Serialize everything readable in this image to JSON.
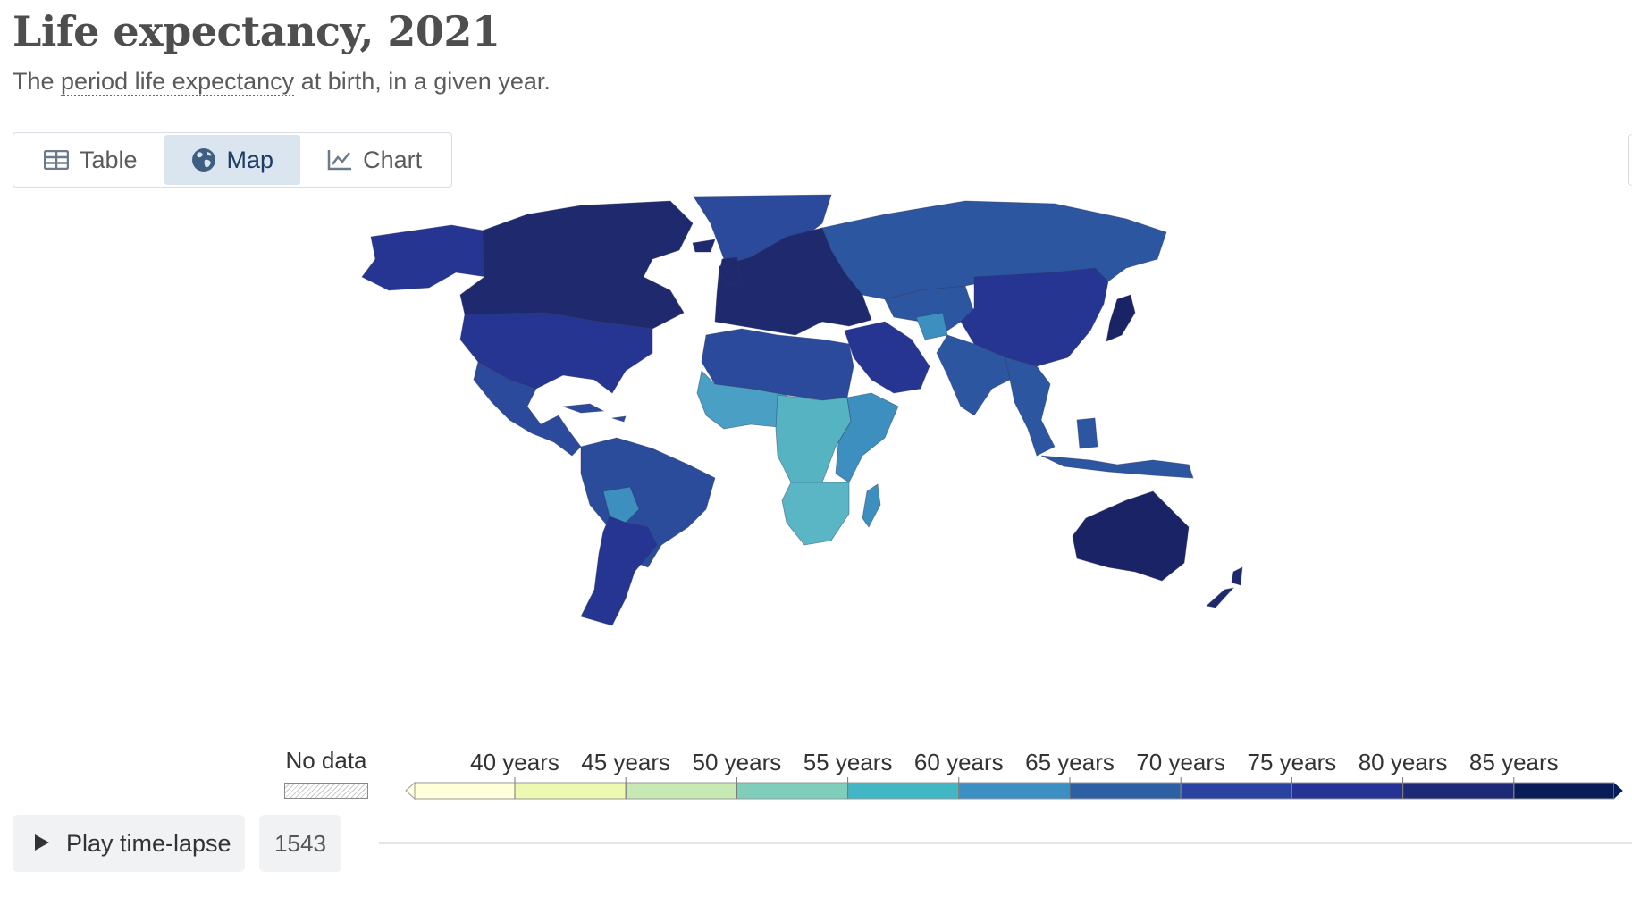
{
  "header": {
    "title": "Life expectancy, 2021",
    "subtitle_pre": "The ",
    "subtitle_term": "period life expectancy",
    "subtitle_post": " at birth, in a given year."
  },
  "tabs": [
    {
      "label": "Table",
      "icon": "table-icon",
      "active": false
    },
    {
      "label": "Map",
      "icon": "globe-icon",
      "active": true
    },
    {
      "label": "Chart",
      "icon": "line-chart-icon",
      "active": false
    }
  ],
  "map": {
    "fill": {
      "north_america": "#1f2a6e",
      "usa": "#263592",
      "mexico_central": "#2c4a9c",
      "south_america": "#2b4c9a",
      "bolivia": "#3d8fbf",
      "argentina": "#263592",
      "greenland": "#2c4a9c",
      "europe": "#1f2a6e",
      "russia": "#2d56a0",
      "middle_east": "#263592",
      "north_africa": "#2c4a9c",
      "west_africa": "#4aa0c4",
      "central_africa": "#56b3c2",
      "east_africa": "#3d8fbf",
      "southern_africa": "#5ab6c5",
      "madagascar": "#3d8fbf",
      "south_asia": "#2d56a0",
      "china": "#263592",
      "southeast_asia": "#2d56a0",
      "japan": "#1a2366",
      "australia": "#1a2366",
      "new_zealand": "#1f2a6e"
    }
  },
  "legend": {
    "no_data_label": "No data",
    "labels": [
      "40 years",
      "45 years",
      "50 years",
      "55 years",
      "60 years",
      "65 years",
      "70 years",
      "75 years",
      "80 years",
      "85 years"
    ],
    "colors": [
      "#ffffd9",
      "#edf8b1",
      "#c7e9b4",
      "#7fcdbb",
      "#41b6c4",
      "#3b8fc2",
      "#2d5fa5",
      "#2a43a0",
      "#253494",
      "#1d2a78",
      "#081d58"
    ]
  },
  "controls": {
    "play_label": "Play time-lapse",
    "start_year": "1543"
  }
}
